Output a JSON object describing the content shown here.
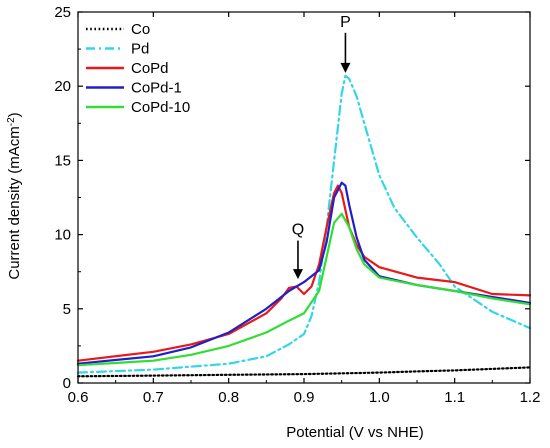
{
  "chart_data": {
    "type": "line",
    "title": "",
    "xlabel": "Potential (V vs NHE)",
    "ylabel": "Current density (mAcm",
    "ylabel_sup": "-2",
    "ylabel_close": ")",
    "xlim": [
      0.6,
      1.2
    ],
    "ylim": [
      0,
      25
    ],
    "xticks": [
      0.6,
      0.7,
      0.8,
      0.9,
      1.0,
      1.1,
      1.2
    ],
    "xtick_labels": [
      "0.6",
      "0.7",
      "0.8",
      "0.9",
      "1.0",
      "1.1",
      "1.2"
    ],
    "yticks": [
      0,
      5,
      10,
      15,
      20,
      25
    ],
    "ytick_labels": [
      "0",
      "5",
      "10",
      "15",
      "20",
      "25"
    ],
    "grid": false,
    "legend_position": "top-left",
    "series": [
      {
        "name": "Co",
        "color": "#000000",
        "dash": "dotted",
        "x": [
          0.6,
          0.7,
          0.8,
          0.9,
          1.0,
          1.05,
          1.1,
          1.15,
          1.2
        ],
        "y": [
          0.45,
          0.5,
          0.55,
          0.6,
          0.7,
          0.78,
          0.85,
          0.95,
          1.05
        ]
      },
      {
        "name": "Pd",
        "color": "#33d6e6",
        "dash": "dashdot",
        "x": [
          0.6,
          0.7,
          0.8,
          0.85,
          0.88,
          0.9,
          0.91,
          0.92,
          0.93,
          0.94,
          0.95,
          0.955,
          0.96,
          0.97,
          0.98,
          1.0,
          1.02,
          1.05,
          1.08,
          1.1,
          1.15,
          1.2
        ],
        "y": [
          0.7,
          0.9,
          1.3,
          1.8,
          2.6,
          3.3,
          4.5,
          6.8,
          10.5,
          15.0,
          19.5,
          20.7,
          20.5,
          19.3,
          17.5,
          14.0,
          11.8,
          9.8,
          8.0,
          6.5,
          4.8,
          3.7
        ]
      },
      {
        "name": "CoPd",
        "color": "#e8191a",
        "dash": "solid",
        "x": [
          0.6,
          0.7,
          0.75,
          0.8,
          0.85,
          0.87,
          0.88,
          0.89,
          0.9,
          0.91,
          0.92,
          0.93,
          0.94,
          0.945,
          0.95,
          0.96,
          0.97,
          0.98,
          1.0,
          1.05,
          1.1,
          1.15,
          1.2
        ],
        "y": [
          1.5,
          2.1,
          2.6,
          3.3,
          4.7,
          5.7,
          6.4,
          6.5,
          6.0,
          6.5,
          8.0,
          10.5,
          12.8,
          13.3,
          12.8,
          10.5,
          9.3,
          8.5,
          7.8,
          7.1,
          6.8,
          6.0,
          5.9
        ]
      },
      {
        "name": "CoPd-1",
        "color": "#2020c8",
        "dash": "solid",
        "x": [
          0.6,
          0.7,
          0.75,
          0.8,
          0.85,
          0.88,
          0.9,
          0.92,
          0.93,
          0.94,
          0.95,
          0.955,
          0.96,
          0.97,
          0.98,
          1.0,
          1.05,
          1.1,
          1.15,
          1.2
        ],
        "y": [
          1.3,
          1.8,
          2.4,
          3.4,
          5.0,
          6.2,
          6.8,
          7.6,
          9.5,
          12.5,
          13.5,
          13.3,
          12.0,
          9.8,
          8.3,
          7.2,
          6.6,
          6.2,
          5.8,
          5.4
        ]
      },
      {
        "name": "CoPd-10",
        "color": "#33dd33",
        "dash": "solid",
        "x": [
          0.6,
          0.7,
          0.75,
          0.8,
          0.85,
          0.88,
          0.9,
          0.92,
          0.93,
          0.94,
          0.95,
          0.96,
          0.97,
          0.98,
          1.0,
          1.05,
          1.1,
          1.15,
          1.2
        ],
        "y": [
          1.2,
          1.5,
          1.9,
          2.5,
          3.4,
          4.2,
          4.7,
          6.2,
          8.5,
          10.8,
          11.4,
          10.5,
          9.0,
          8.0,
          7.1,
          6.6,
          6.2,
          5.7,
          5.3
        ]
      }
    ],
    "annotations": [
      {
        "text": "P",
        "x": 0.955,
        "y": 20.9,
        "label_y": 24.0
      },
      {
        "text": "Q",
        "x": 0.892,
        "y": 7.0,
        "label_y": 10.0
      }
    ]
  }
}
